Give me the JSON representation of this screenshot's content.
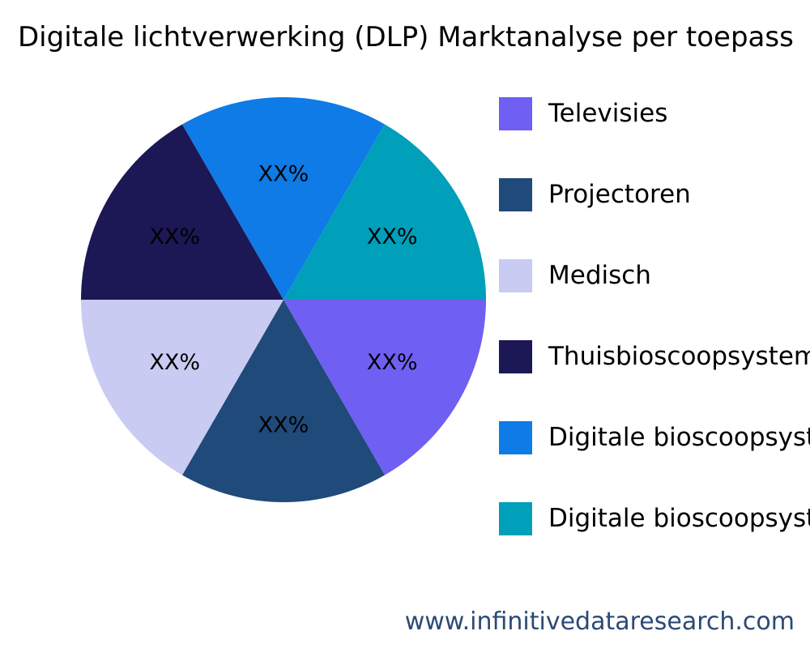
{
  "chart_data": {
    "type": "pie",
    "title": "Digitale lichtverwerking (DLP) Marktanalyse per toepass",
    "slices": [
      {
        "name": "Televisies",
        "value": 16.67,
        "label": "XX%",
        "color": "#6f5ff2"
      },
      {
        "name": "Projectoren",
        "value": 16.67,
        "label": "XX%",
        "color": "#1f4a7a"
      },
      {
        "name": "Medisch",
        "value": 16.67,
        "label": "XX%",
        "color": "#c9cbf2"
      },
      {
        "name": "Thuisbioscoopsysteme",
        "value": 16.67,
        "label": "XX%",
        "color": "#1c1755"
      },
      {
        "name": "Digitale bioscoopsyste",
        "value": 16.67,
        "label": "XX%",
        "color": "#0e7be6"
      },
      {
        "name": "Digitale bioscoopsyste",
        "value": 16.67,
        "label": "XX%",
        "color": "#009fba"
      }
    ],
    "legend_position": "right"
  },
  "footer": {
    "source_url": "www.infinitivedataresearch.com"
  }
}
